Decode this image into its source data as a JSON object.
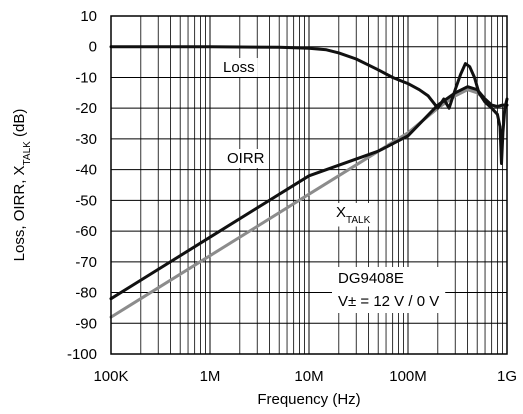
{
  "chart_data": {
    "type": "line",
    "xlabel": "Frequency (Hz)",
    "ylabel": {
      "text": "Loss, OIRR, X",
      "sub": "TALK",
      "unit": " (dB)"
    },
    "x_scale": "log",
    "xlim": [
      100000,
      1000000000
    ],
    "ylim": [
      -100,
      10
    ],
    "grid": true,
    "x_ticks": [
      {
        "value": 100000,
        "label": "100K"
      },
      {
        "value": 1000000,
        "label": "1M"
      },
      {
        "value": 10000000,
        "label": "10M"
      },
      {
        "value": 100000000,
        "label": "100M"
      },
      {
        "value": 1000000000,
        "label": "1G"
      }
    ],
    "y_ticks": [
      10,
      0,
      -10,
      -20,
      -30,
      -40,
      -50,
      -60,
      -70,
      -80,
      -90,
      -100
    ],
    "series": [
      {
        "name": "Loss",
        "color": "#111111",
        "x": [
          100000,
          1000000,
          5000000,
          10000000,
          15000000,
          20000000,
          30000000,
          50000000,
          70000000,
          100000000,
          130000000,
          160000000,
          200000000,
          230000000,
          260000000,
          300000000,
          340000000,
          380000000,
          420000000,
          470000000,
          520000000,
          600000000,
          700000000,
          800000000,
          850000000,
          880000000,
          910000000,
          950000000,
          1000000000
        ],
        "y": [
          0,
          0,
          -0.2,
          -0.5,
          -1,
          -2,
          -4,
          -7.5,
          -10,
          -12,
          -14,
          -16,
          -20,
          -17,
          -20,
          -14,
          -9,
          -5.5,
          -6.5,
          -10,
          -15,
          -18,
          -20,
          -22,
          -26,
          -38,
          -28,
          -20,
          -17
        ]
      },
      {
        "name": "OIRR",
        "color": "#111111",
        "x": [
          100000,
          1000000,
          10000000,
          50000000,
          100000000,
          200000000,
          300000000,
          400000000,
          500000000,
          600000000,
          700000000,
          800000000,
          900000000,
          1000000000
        ],
        "y": [
          -82,
          -62,
          -42,
          -34,
          -29,
          -19,
          -15,
          -13,
          -14,
          -17,
          -19,
          -19.5,
          -19,
          -19
        ]
      },
      {
        "name": "X",
        "name_sub": "TALK",
        "color": "#8c8c8c",
        "x": [
          100000,
          1000000,
          10000000,
          100000000,
          200000000,
          300000000,
          400000000,
          500000000,
          600000000,
          700000000,
          800000000,
          900000000,
          1000000000
        ],
        "y": [
          -88,
          -68,
          -48,
          -28,
          -20,
          -16,
          -14,
          -15,
          -17,
          -19,
          -19.5,
          -19,
          -19
        ]
      }
    ],
    "annotations": {
      "part": "DG9408E",
      "supply": "V± = 12 V / 0 V"
    }
  }
}
